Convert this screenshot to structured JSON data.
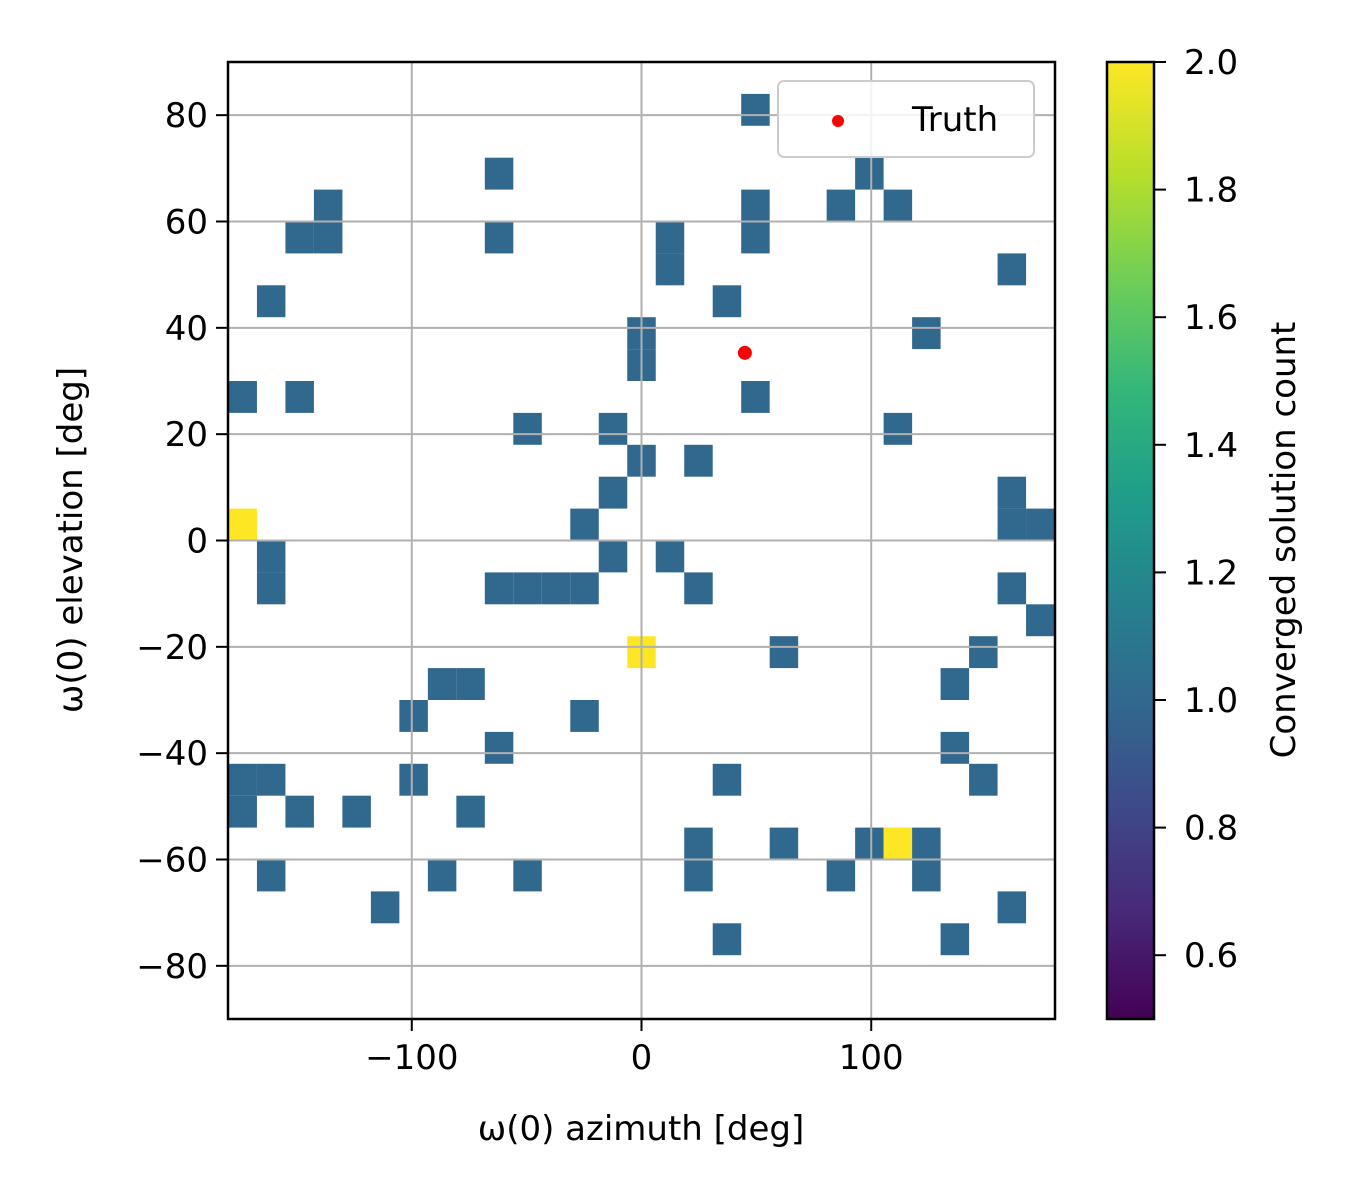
{
  "chart_data": {
    "type": "heatmap",
    "title": "",
    "xlabel": "ω(0) azimuth [deg]",
    "ylabel": "ω(0) elevation [deg]",
    "xlim": [
      -180,
      180
    ],
    "ylim": [
      -90,
      90
    ],
    "cell_width_deg": 12.4,
    "cell_height_deg": 6.0,
    "x_ticks": [
      {
        "v": -100,
        "label": "−100"
      },
      {
        "v": 0,
        "label": "0"
      },
      {
        "v": 100,
        "label": "100"
      }
    ],
    "y_ticks": [
      {
        "v": 80,
        "label": "80"
      },
      {
        "v": 60,
        "label": "60"
      },
      {
        "v": 40,
        "label": "40"
      },
      {
        "v": 20,
        "label": "20"
      },
      {
        "v": 0,
        "label": "0"
      },
      {
        "v": -20,
        "label": "−20"
      },
      {
        "v": -40,
        "label": "−40"
      },
      {
        "v": -60,
        "label": "−60"
      },
      {
        "v": -80,
        "label": "−80"
      }
    ],
    "grid": true,
    "colorbar": {
      "label": "Converged solution count",
      "range": [
        0.5,
        2.0
      ],
      "colormap": "viridis",
      "ticks": [
        {
          "v": 2.0,
          "label": "2.0"
        },
        {
          "v": 1.8,
          "label": "1.8"
        },
        {
          "v": 1.6,
          "label": "1.6"
        },
        {
          "v": 1.4,
          "label": "1.4"
        },
        {
          "v": 1.2,
          "label": "1.2"
        },
        {
          "v": 1.0,
          "label": "1.0"
        },
        {
          "v": 0.8,
          "label": "0.8"
        },
        {
          "v": 0.6,
          "label": "0.6"
        }
      ]
    },
    "colors": {
      "count_1": "#31688e",
      "count_2": "#fde725",
      "truth": "#ff0000",
      "grid": "#b0b0b0"
    },
    "cells": [
      {
        "az": 49.6,
        "el": 81,
        "count": 1
      },
      {
        "az": -62.0,
        "el": 69,
        "count": 1
      },
      {
        "az": 99.2,
        "el": 69,
        "count": 1
      },
      {
        "az": -136.4,
        "el": 63,
        "count": 1
      },
      {
        "az": 49.6,
        "el": 63,
        "count": 1
      },
      {
        "az": 86.8,
        "el": 63,
        "count": 1
      },
      {
        "az": 111.6,
        "el": 63,
        "count": 1
      },
      {
        "az": -148.8,
        "el": 57,
        "count": 1
      },
      {
        "az": -136.4,
        "el": 57,
        "count": 1
      },
      {
        "az": -62.0,
        "el": 57,
        "count": 1
      },
      {
        "az": 12.4,
        "el": 57,
        "count": 1
      },
      {
        "az": 49.6,
        "el": 57,
        "count": 1
      },
      {
        "az": 12.4,
        "el": 51,
        "count": 1
      },
      {
        "az": 161.2,
        "el": 51,
        "count": 1
      },
      {
        "az": -161.2,
        "el": 45,
        "count": 1
      },
      {
        "az": 37.2,
        "el": 45,
        "count": 1
      },
      {
        "az": 0.0,
        "el": 39,
        "count": 1
      },
      {
        "az": 124.0,
        "el": 39,
        "count": 1
      },
      {
        "az": 0.0,
        "el": 33,
        "count": 1
      },
      {
        "az": -173.6,
        "el": 27,
        "count": 1
      },
      {
        "az": -148.8,
        "el": 27,
        "count": 1
      },
      {
        "az": 49.6,
        "el": 27,
        "count": 1
      },
      {
        "az": -49.6,
        "el": 21,
        "count": 1
      },
      {
        "az": -12.4,
        "el": 21,
        "count": 1
      },
      {
        "az": 111.6,
        "el": 21,
        "count": 1
      },
      {
        "az": 0.0,
        "el": 15,
        "count": 1
      },
      {
        "az": 24.8,
        "el": 15,
        "count": 1
      },
      {
        "az": -12.4,
        "el": 9,
        "count": 1
      },
      {
        "az": 161.2,
        "el": 9,
        "count": 1
      },
      {
        "az": -173.6,
        "el": 3,
        "count": 2
      },
      {
        "az": -24.8,
        "el": 3,
        "count": 1
      },
      {
        "az": 161.2,
        "el": 3,
        "count": 1
      },
      {
        "az": 173.6,
        "el": 3,
        "count": 1
      },
      {
        "az": -161.2,
        "el": -3,
        "count": 1
      },
      {
        "az": -12.4,
        "el": -3,
        "count": 1
      },
      {
        "az": 12.4,
        "el": -3,
        "count": 1
      },
      {
        "az": -161.2,
        "el": -9,
        "count": 1
      },
      {
        "az": -62.0,
        "el": -9,
        "count": 1
      },
      {
        "az": -49.6,
        "el": -9,
        "count": 1
      },
      {
        "az": -37.2,
        "el": -9,
        "count": 1
      },
      {
        "az": -24.8,
        "el": -9,
        "count": 1
      },
      {
        "az": 24.8,
        "el": -9,
        "count": 1
      },
      {
        "az": 161.2,
        "el": -9,
        "count": 1
      },
      {
        "az": 173.6,
        "el": -15,
        "count": 1
      },
      {
        "az": 0.0,
        "el": -21,
        "count": 2
      },
      {
        "az": 62.0,
        "el": -21,
        "count": 1
      },
      {
        "az": 148.8,
        "el": -21,
        "count": 1
      },
      {
        "az": -86.8,
        "el": -27,
        "count": 1
      },
      {
        "az": -74.4,
        "el": -27,
        "count": 1
      },
      {
        "az": 136.4,
        "el": -27,
        "count": 1
      },
      {
        "az": -99.2,
        "el": -33,
        "count": 1
      },
      {
        "az": -24.8,
        "el": -33,
        "count": 1
      },
      {
        "az": -62.0,
        "el": -39,
        "count": 1
      },
      {
        "az": 136.4,
        "el": -39,
        "count": 1
      },
      {
        "az": -173.6,
        "el": -45,
        "count": 1
      },
      {
        "az": -161.2,
        "el": -45,
        "count": 1
      },
      {
        "az": -99.2,
        "el": -45,
        "count": 1
      },
      {
        "az": 37.2,
        "el": -45,
        "count": 1
      },
      {
        "az": 148.8,
        "el": -45,
        "count": 1
      },
      {
        "az": -173.6,
        "el": -51,
        "count": 1
      },
      {
        "az": -148.8,
        "el": -51,
        "count": 1
      },
      {
        "az": -124.0,
        "el": -51,
        "count": 1
      },
      {
        "az": -74.4,
        "el": -51,
        "count": 1
      },
      {
        "az": 24.8,
        "el": -57,
        "count": 1
      },
      {
        "az": 62.0,
        "el": -57,
        "count": 1
      },
      {
        "az": 99.2,
        "el": -57,
        "count": 1
      },
      {
        "az": 111.6,
        "el": -57,
        "count": 2
      },
      {
        "az": 124.0,
        "el": -57,
        "count": 1
      },
      {
        "az": -161.2,
        "el": -63,
        "count": 1
      },
      {
        "az": -86.8,
        "el": -63,
        "count": 1
      },
      {
        "az": -49.6,
        "el": -63,
        "count": 1
      },
      {
        "az": 24.8,
        "el": -63,
        "count": 1
      },
      {
        "az": 86.8,
        "el": -63,
        "count": 1
      },
      {
        "az": 124.0,
        "el": -63,
        "count": 1
      },
      {
        "az": -111.6,
        "el": -69,
        "count": 1
      },
      {
        "az": 161.2,
        "el": -69,
        "count": 1
      },
      {
        "az": 37.2,
        "el": -75,
        "count": 1
      },
      {
        "az": 136.4,
        "el": -75,
        "count": 1
      }
    ],
    "truth": {
      "az": 45,
      "el": 35.3
    },
    "legend": {
      "entries": [
        "Truth"
      ],
      "position": "upper right"
    }
  }
}
